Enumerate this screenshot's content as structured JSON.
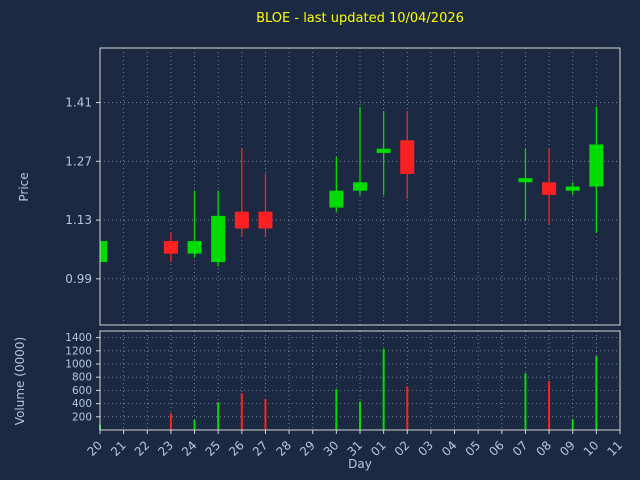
{
  "colors": {
    "background": "#1b2a42",
    "title": "#ffff00",
    "axis_text": "#b0c8e0",
    "spine": "#d4d4d4",
    "grid": "#a8b6c8",
    "up": "#00dc00",
    "down": "#ff2121"
  },
  "chart_data": [
    {
      "type": "candlestick",
      "title": "BLOE - last updated 10/04/2026",
      "ylabel": "Price",
      "xlabel": "Day",
      "ylim": [
        0.88,
        1.54
      ],
      "yticks": [
        0.99,
        1.13,
        1.27,
        1.41
      ],
      "grid": true,
      "legend": "none",
      "categories": [
        "20",
        "21",
        "22",
        "23",
        "24",
        "25",
        "26",
        "27",
        "28",
        "29",
        "30",
        "31",
        "01",
        "02",
        "03",
        "04",
        "05",
        "06",
        "07",
        "08",
        "09",
        "10",
        "11"
      ],
      "candles": [
        {
          "day": "20",
          "open": 1.03,
          "high": 1.08,
          "low": 1.03,
          "close": 1.08
        },
        {
          "day": "23",
          "open": 1.08,
          "high": 1.1,
          "low": 1.03,
          "close": 1.05
        },
        {
          "day": "24",
          "open": 1.05,
          "high": 1.2,
          "low": 1.04,
          "close": 1.08
        },
        {
          "day": "25",
          "open": 1.03,
          "high": 1.2,
          "low": 1.02,
          "close": 1.14
        },
        {
          "day": "26",
          "open": 1.15,
          "high": 1.3,
          "low": 1.09,
          "close": 1.11
        },
        {
          "day": "27",
          "open": 1.15,
          "high": 1.24,
          "low": 1.09,
          "close": 1.11
        },
        {
          "day": "30",
          "open": 1.16,
          "high": 1.28,
          "low": 1.15,
          "close": 1.2
        },
        {
          "day": "31",
          "open": 1.2,
          "high": 1.4,
          "low": 1.19,
          "close": 1.22
        },
        {
          "day": "01",
          "open": 1.29,
          "high": 1.39,
          "low": 1.19,
          "close": 1.3
        },
        {
          "day": "02",
          "open": 1.32,
          "high": 1.39,
          "low": 1.18,
          "close": 1.24
        },
        {
          "day": "07",
          "open": 1.22,
          "high": 1.3,
          "low": 1.13,
          "close": 1.23
        },
        {
          "day": "08",
          "open": 1.22,
          "high": 1.3,
          "low": 1.12,
          "close": 1.19
        },
        {
          "day": "09",
          "open": 1.2,
          "high": 1.22,
          "low": 1.19,
          "close": 1.21
        },
        {
          "day": "10",
          "open": 1.21,
          "high": 1.4,
          "low": 1.1,
          "close": 1.31
        }
      ]
    },
    {
      "type": "bar",
      "ylabel": "Volume (0000)",
      "ylim": [
        0,
        1500
      ],
      "yticks": [
        200,
        400,
        600,
        800,
        1000,
        1200,
        1400
      ],
      "grid": true,
      "shared_x_with": "candlestick",
      "bars": [
        {
          "day": "20",
          "value": 80,
          "direction": "up"
        },
        {
          "day": "23",
          "value": 250,
          "direction": "down"
        },
        {
          "day": "24",
          "value": 150,
          "direction": "up"
        },
        {
          "day": "25",
          "value": 420,
          "direction": "up"
        },
        {
          "day": "26",
          "value": 560,
          "direction": "down"
        },
        {
          "day": "27",
          "value": 470,
          "direction": "down"
        },
        {
          "day": "30",
          "value": 620,
          "direction": "up"
        },
        {
          "day": "31",
          "value": 430,
          "direction": "up"
        },
        {
          "day": "01",
          "value": 1230,
          "direction": "up"
        },
        {
          "day": "02",
          "value": 660,
          "direction": "down"
        },
        {
          "day": "07",
          "value": 860,
          "direction": "up"
        },
        {
          "day": "08",
          "value": 740,
          "direction": "down"
        },
        {
          "day": "09",
          "value": 160,
          "direction": "up"
        },
        {
          "day": "10",
          "value": 1120,
          "direction": "up"
        }
      ]
    }
  ]
}
